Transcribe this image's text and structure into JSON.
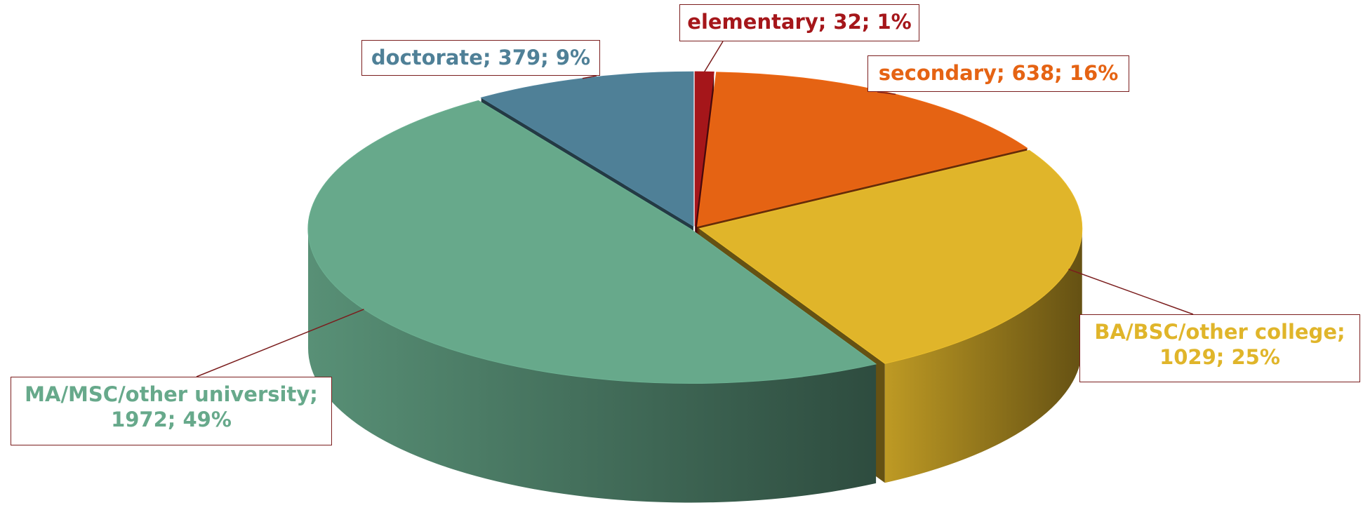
{
  "chart_data": {
    "type": "pie3d",
    "values": [
      32,
      638,
      1029,
      1972,
      379
    ],
    "value_labels": [
      "elementary; 32; 1%",
      "secondary; 638; 16%",
      "BA/BSC/other college; 1029; 25%",
      "MA/MSC/other university; 1972; 49%",
      "doctorate; 379; 9%"
    ],
    "colors": [
      "#a5161a",
      "#e56313",
      "#e0b52a",
      "#67a98b",
      "#4f8097"
    ]
  }
}
